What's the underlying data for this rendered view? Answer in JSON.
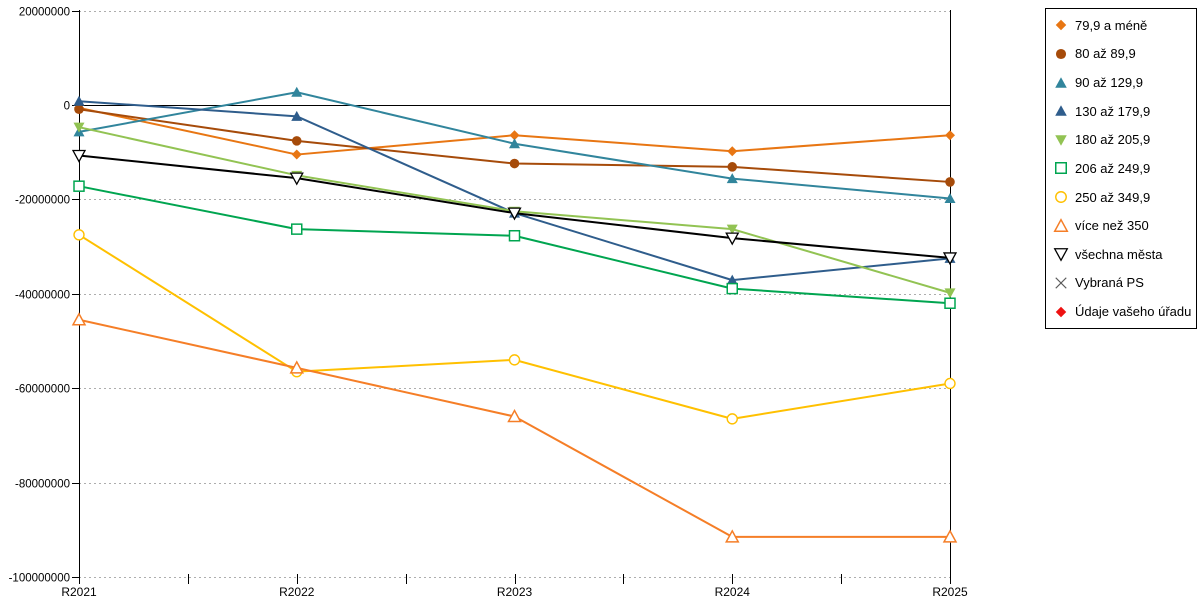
{
  "chart_data": {
    "type": "line",
    "title": "",
    "xlabel": "",
    "ylabel": "",
    "x_categories": [
      "R2021",
      "R2022",
      "R2023",
      "R2024",
      "R2025"
    ],
    "y_tick_labels": [
      "20000000",
      "0",
      "-20000000",
      "-40000000",
      "-60000000",
      "-80000000",
      "-100000000"
    ],
    "y_ticks": [
      20000000,
      0,
      -20000000,
      -40000000,
      -60000000,
      -80000000,
      -100000000
    ],
    "ylim": [
      -100000000,
      20000000
    ],
    "grid": "horizontal-dashed",
    "grid_color": "#ADADAD",
    "zero_line_color": "#000000",
    "legend_position": "right",
    "series": [
      {
        "name": "79,9 a méně",
        "color": "#E87613",
        "marker": "diamond-filled",
        "values": [
          -600000,
          -10500000,
          -6400000,
          -9800000,
          -6400000
        ]
      },
      {
        "name": "80 až 89,9",
        "color": "#A64B0A",
        "marker": "circle-filled",
        "values": [
          -900000,
          -7600000,
          -12400000,
          -13100000,
          -16300000
        ]
      },
      {
        "name": "90 až 129,9",
        "color": "#31859C",
        "marker": "triangle-up-filled",
        "values": [
          -5700000,
          2700000,
          -8200000,
          -15600000,
          -19800000
        ]
      },
      {
        "name": "130 až 179,9",
        "color": "#2F5D8C",
        "marker": "triangle-up-filled",
        "values": [
          800000,
          -2400000,
          -22900000,
          -37100000,
          -32500000
        ]
      },
      {
        "name": "180 až 205,9",
        "color": "#92C353",
        "marker": "triangle-down-filled",
        "values": [
          -4700000,
          -14900000,
          -22500000,
          -26300000,
          -39800000
        ]
      },
      {
        "name": "206 až 249,9",
        "color": "#00A550",
        "marker": "square-open",
        "values": [
          -17200000,
          -26300000,
          -27700000,
          -38900000,
          -42000000
        ]
      },
      {
        "name": "250 až 349,9",
        "color": "#FFC000",
        "marker": "circle-open",
        "values": [
          -27500000,
          -56500000,
          -54000000,
          -66500000,
          -59000000
        ]
      },
      {
        "name": "více než 350",
        "color": "#F57E27",
        "marker": "triangle-up-open",
        "values": [
          -45500000,
          -55700000,
          -66000000,
          -91500000,
          -91500000
        ]
      },
      {
        "name": "všechna města",
        "color": "#000000",
        "marker": "triangle-down-open",
        "values": [
          -10700000,
          -15500000,
          -22900000,
          -28200000,
          -32400000
        ]
      },
      {
        "name": "Vybraná PS",
        "color": "#5A5A5A",
        "marker": "x-cross",
        "values": []
      },
      {
        "name": "Údaje vašeho úřadu",
        "color": "#EE1111",
        "marker": "diamond-filled",
        "values": []
      }
    ]
  }
}
